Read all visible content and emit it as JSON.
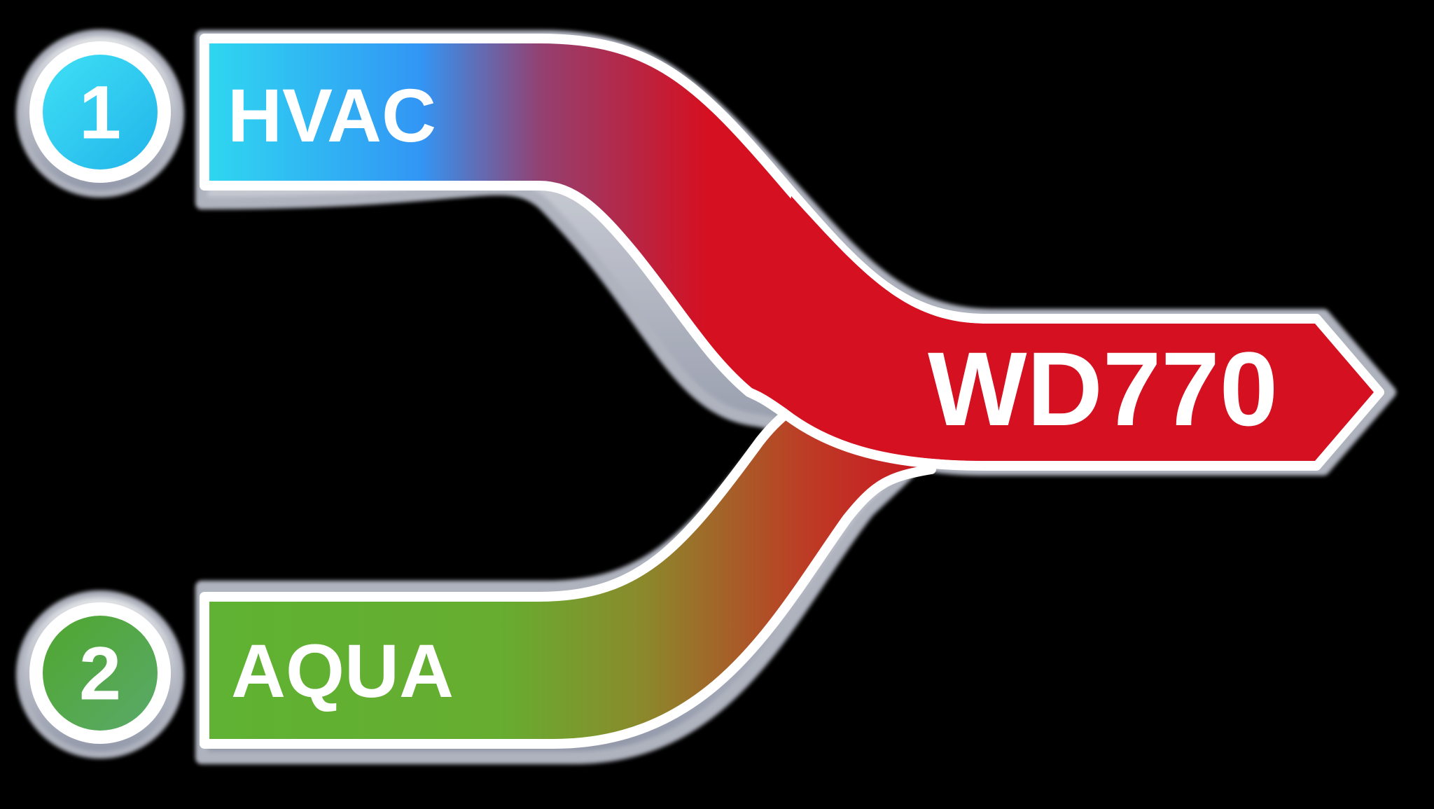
{
  "inputs": [
    {
      "number": "1",
      "label": "HVAC",
      "color": "#2fd6f0"
    },
    {
      "number": "2",
      "label": "AQUA",
      "color": "#5fb233"
    }
  ],
  "output": {
    "label": "WD770",
    "color": "#d51020"
  },
  "colors": {
    "background": "#000000",
    "outline": "#ffffff",
    "hvac_mid": "#3296f5",
    "aqua": "#5fb233",
    "merge_red": "#d51020",
    "bevel_shadow": "#a4a9b8"
  }
}
